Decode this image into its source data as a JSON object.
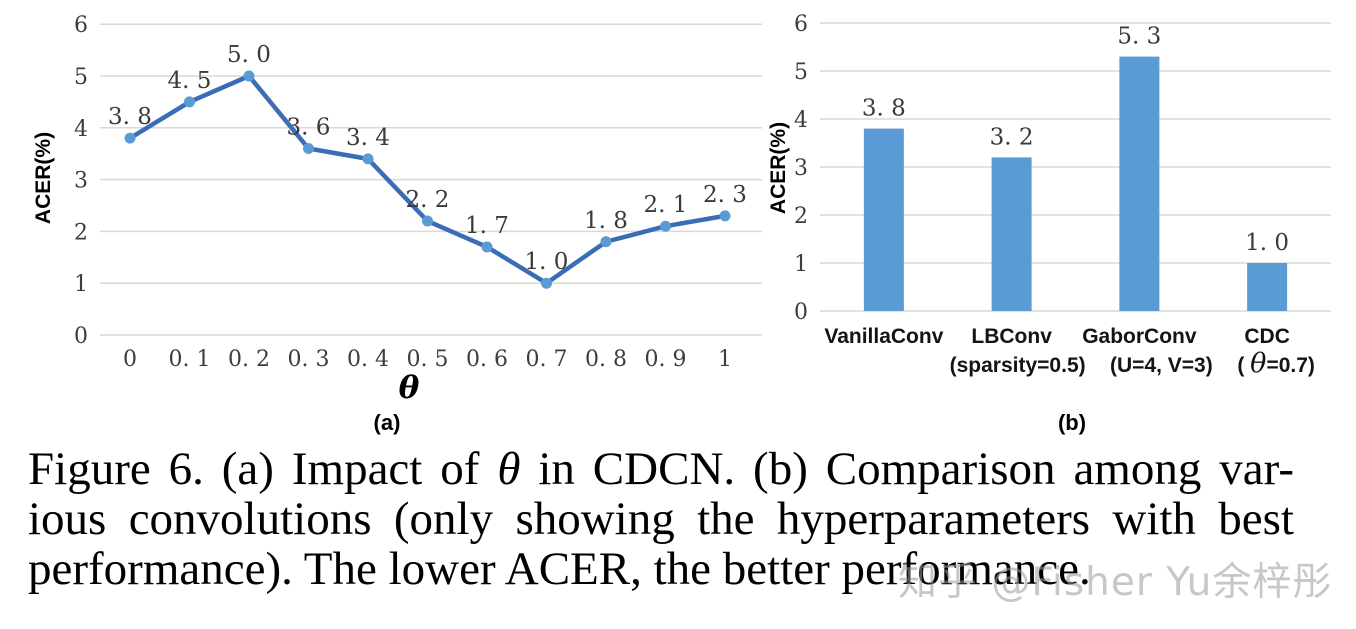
{
  "figure": {
    "caption": {
      "line1_pre_theta": "Figure 6.  (a) Impact of ",
      "line1_theta": "θ",
      "line1_post_theta": " in CDCN. (b) Comparison among var-",
      "line2": "ious convolutions (only showing the hyperparameters with best",
      "line3": "performance). The lower ACER, the better performance."
    },
    "watermark": "知乎 @Fisher Yu余梓彤",
    "panel_a_label": "(a)",
    "panel_b_label": "(b)"
  },
  "colors": {
    "line": "#3a6db5",
    "marker": "#5b9bd5",
    "bar": "#5b9bd5",
    "gridline": "#d9d9d9",
    "tick_text": "#3d3d3d",
    "label_text": "#3a3a3a"
  },
  "chart_data": [
    {
      "type": "line",
      "panel": "(a)",
      "title": "",
      "xlabel": "θ",
      "ylabel": "ACER(%)",
      "x": [
        0,
        0.1,
        0.2,
        0.3,
        0.4,
        0.5,
        0.6,
        0.7,
        0.8,
        0.9,
        1
      ],
      "x_tick_labels": [
        "0",
        "0. 1",
        "0. 2",
        "0. 3",
        "0. 4",
        "0. 5",
        "0. 6",
        "0. 7",
        "0. 8",
        "0. 9",
        "1"
      ],
      "values": [
        3.8,
        4.5,
        5.0,
        3.6,
        3.4,
        2.2,
        1.7,
        1.0,
        1.8,
        2.1,
        2.3
      ],
      "point_labels": [
        "3. 8",
        "4. 5",
        "5. 0",
        "3. 6",
        "3. 4",
        "2. 2",
        "1. 7",
        "1. 0",
        "1. 8",
        "2. 1",
        "2. 3"
      ],
      "ylim": [
        0,
        6
      ],
      "y_ticks": [
        0,
        1,
        2,
        3,
        4,
        5,
        6
      ],
      "grid": true,
      "legend": "none"
    },
    {
      "type": "bar",
      "panel": "(b)",
      "title": "",
      "xlabel": "",
      "ylabel": "ACER(%)",
      "categories": [
        "VanillaConv",
        "LBConv",
        "GaborConv",
        "CDC"
      ],
      "category_sublabels": [
        "",
        "(sparsity=0.5)",
        "(U=4, V=3)",
        "( θ=0.7)"
      ],
      "values": [
        3.8,
        3.2,
        5.3,
        1.0
      ],
      "bar_labels": [
        "3. 8",
        "3. 2",
        "5. 3",
        "1. 0"
      ],
      "ylim": [
        0,
        6
      ],
      "y_ticks": [
        0,
        1,
        2,
        3,
        4,
        5,
        6
      ],
      "grid": true,
      "legend": "none"
    }
  ]
}
